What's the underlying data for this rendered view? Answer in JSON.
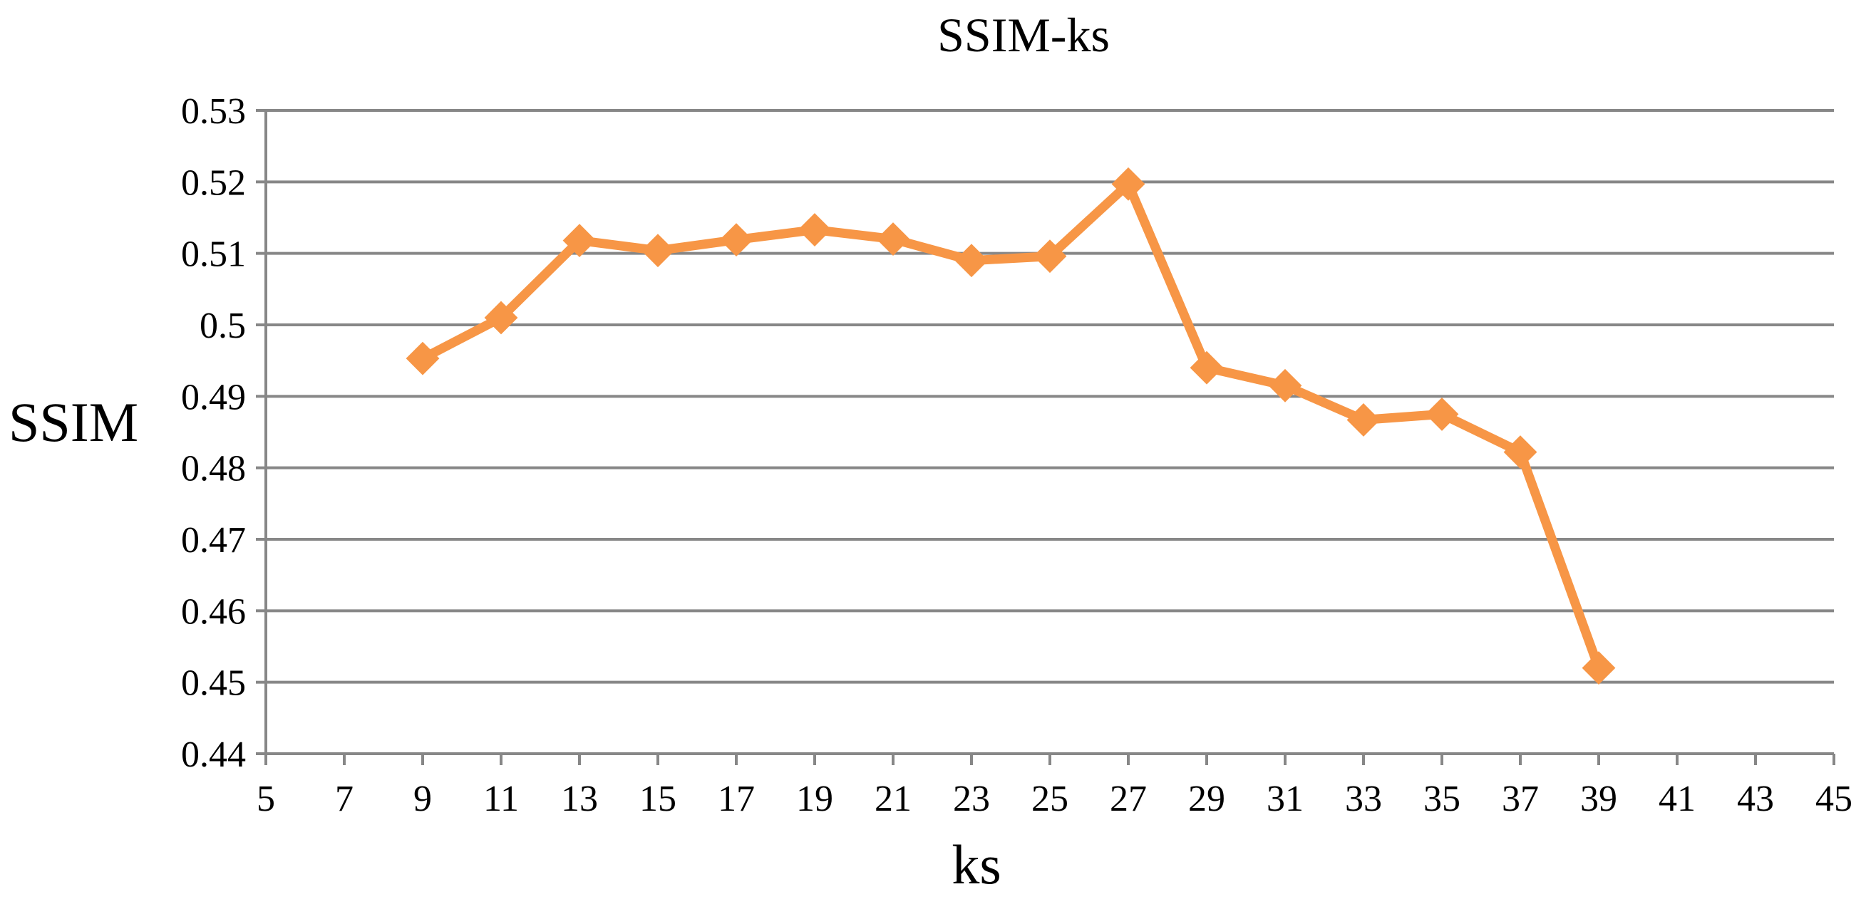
{
  "chart_data": {
    "type": "line",
    "title": "SSIM-ks",
    "xlabel": "ks",
    "ylabel": "SSIM",
    "xlim": [
      5,
      45
    ],
    "ylim": [
      0.44,
      0.53
    ],
    "x_ticks": [
      "5",
      "7",
      "9",
      "11",
      "13",
      "15",
      "17",
      "19",
      "21",
      "23",
      "25",
      "27",
      "29",
      "31",
      "33",
      "35",
      "37",
      "39",
      "41",
      "43",
      "45"
    ],
    "y_ticks": [
      "0.44",
      "0.45",
      "0.46",
      "0.47",
      "0.48",
      "0.49",
      "0.5",
      "0.51",
      "0.52",
      "0.53"
    ],
    "grid": "horizontal",
    "legend": "none",
    "series": [
      {
        "color": "#f79646",
        "marker": "diamond",
        "x": [
          9,
          11,
          13,
          15,
          17,
          19,
          21,
          23,
          25,
          27,
          29,
          31,
          33,
          35,
          37,
          39
        ],
        "values": [
          0.4953,
          0.501,
          0.5118,
          0.5104,
          0.5119,
          0.5133,
          0.512,
          0.509,
          0.5096,
          0.5197,
          0.494,
          0.4915,
          0.4867,
          0.4875,
          0.4822,
          0.452
        ]
      }
    ]
  }
}
